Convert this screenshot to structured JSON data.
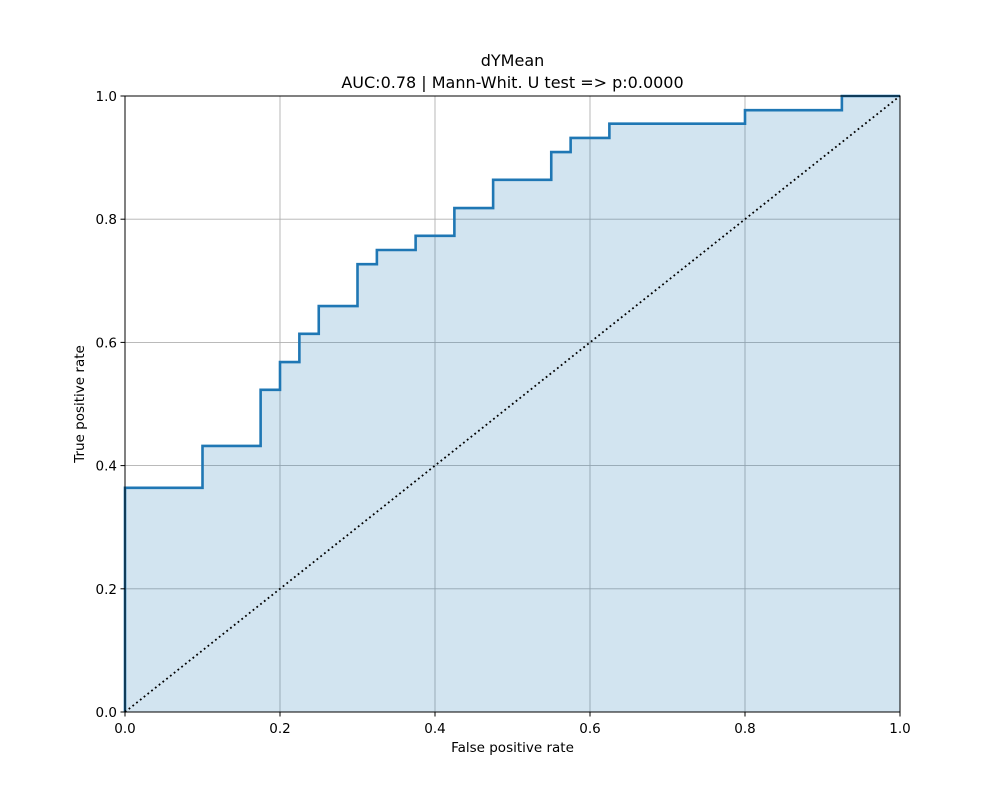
{
  "chart_data": {
    "type": "line",
    "title": "dYMean",
    "subtitle": "AUC:0.78 | Mann-Whit. U test => p:0.0000",
    "xlabel": "False positive rate",
    "ylabel": "True positive rate",
    "xlim": [
      0.0,
      1.0
    ],
    "ylim": [
      0.0,
      1.0
    ],
    "xticks": [
      0.0,
      0.2,
      0.4,
      0.6,
      0.8,
      1.0
    ],
    "yticks": [
      0.0,
      0.2,
      0.4,
      0.6,
      0.8,
      1.0
    ],
    "xtick_labels": [
      "0.0",
      "0.2",
      "0.4",
      "0.6",
      "0.8",
      "1.0"
    ],
    "ytick_labels": [
      "0.0",
      "0.2",
      "0.4",
      "0.6",
      "0.8",
      "1.0"
    ],
    "grid": true,
    "series": [
      {
        "style": "step",
        "color": "#1f77b4",
        "fill_color": "#1f77b4",
        "fill_opacity": 0.2,
        "x": [
          0.0,
          0.0,
          0.1,
          0.1,
          0.175,
          0.175,
          0.2,
          0.2,
          0.225,
          0.225,
          0.25,
          0.25,
          0.3,
          0.3,
          0.325,
          0.325,
          0.375,
          0.375,
          0.425,
          0.425,
          0.475,
          0.475,
          0.55,
          0.55,
          0.575,
          0.575,
          0.625,
          0.625,
          0.8,
          0.8,
          0.925,
          0.925,
          1.0
        ],
        "y": [
          0.0,
          0.364,
          0.364,
          0.432,
          0.432,
          0.523,
          0.523,
          0.568,
          0.568,
          0.614,
          0.614,
          0.659,
          0.659,
          0.727,
          0.727,
          0.75,
          0.75,
          0.773,
          0.773,
          0.818,
          0.818,
          0.864,
          0.864,
          0.909,
          0.909,
          0.932,
          0.932,
          0.955,
          0.955,
          0.977,
          0.977,
          1.0,
          1.0
        ]
      },
      {
        "style": "dotted",
        "color": "#000000",
        "x": [
          0.0,
          1.0
        ],
        "y": [
          0.0,
          1.0
        ]
      }
    ]
  }
}
